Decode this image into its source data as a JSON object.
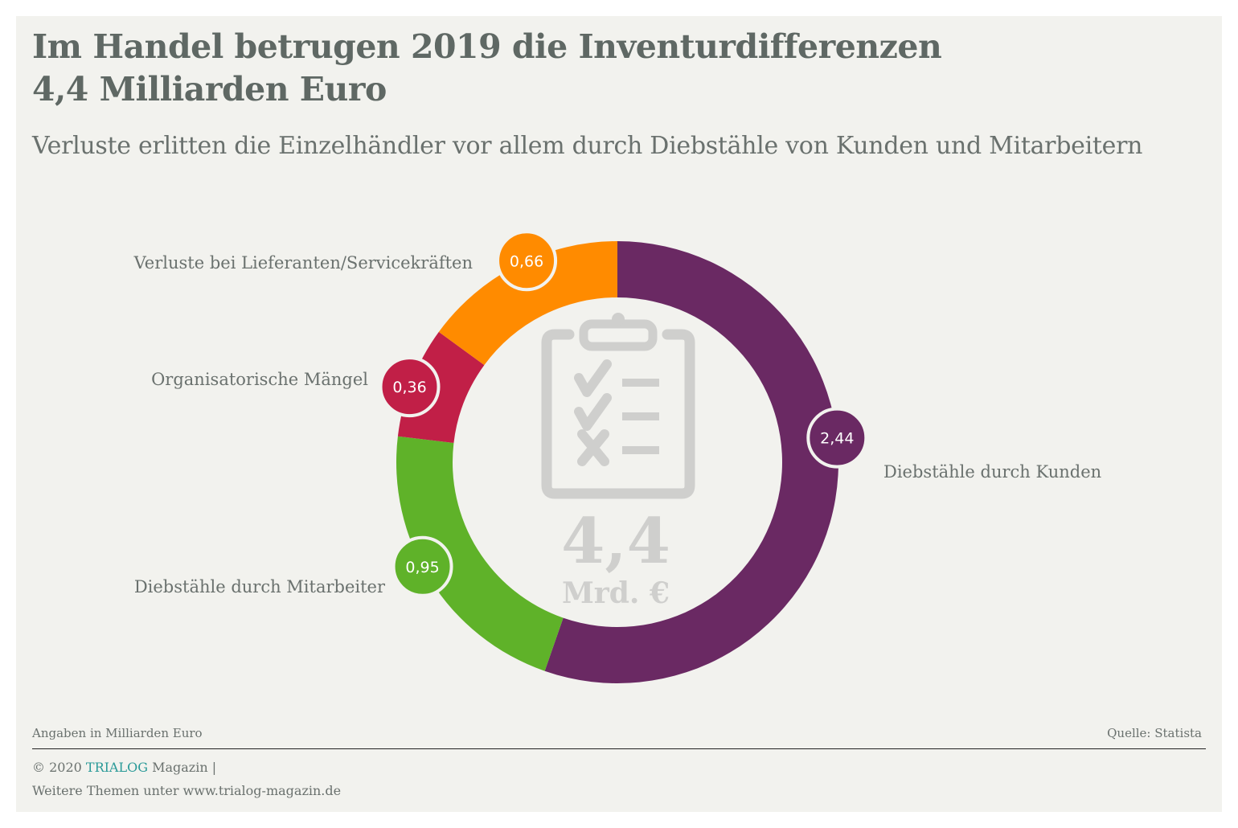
{
  "header": {
    "title_line1": "Im Handel betrugen 2019 die Inventurdifferenzen",
    "title_line2": "4,4 Milliarden Euro",
    "subtitle": "Verluste erlitten die Einzelhändler vor allem durch Diebstähle von Kunden und Mitarbeitern"
  },
  "center": {
    "icon": "clipboard-checklist-icon",
    "value": "4,4",
    "unit": "Mrd. €"
  },
  "chart_data": {
    "type": "pie",
    "variant": "donut",
    "title": "Im Handel betrugen 2019 die Inventurdifferenzen 4,4 Milliarden Euro",
    "subtitle": "Verluste erlitten die Einzelhändler vor allem durch Diebstähle von Kunden und Mitarbeitern",
    "unit": "Milliarden Euro",
    "total_label": "4,4",
    "start_angle": "12 o'clock",
    "direction": "clockwise",
    "slices": [
      {
        "name": "Diebstähle durch Kunden",
        "value": 2.44,
        "label": "2,44",
        "color": "#6a2963"
      },
      {
        "name": "Diebstähle durch Mitarbeiter",
        "value": 0.95,
        "label": "0,95",
        "color": "#5fb229"
      },
      {
        "name": "Organisatorische Mängel",
        "value": 0.36,
        "label": "0,36",
        "color": "#c11f47"
      },
      {
        "name": "Verluste bei Lieferanten/Servicekräften",
        "value": 0.66,
        "label": "0,66",
        "color": "#ff8b00"
      }
    ]
  },
  "footer": {
    "note": "Angaben in Milliarden Euro",
    "source": "Quelle: Statista",
    "copyright_prefix": "© 2020 ",
    "brand": "TRIALOG",
    "copyright_suffix": " Magazin |",
    "more": "Weitere Themen unter www.trialog-magazin.de"
  },
  "colors": {
    "background": "#f2f2ee",
    "text": "#5f6864",
    "brand_accent": "#2a9a98",
    "center_icon": "#cfcfcd"
  }
}
